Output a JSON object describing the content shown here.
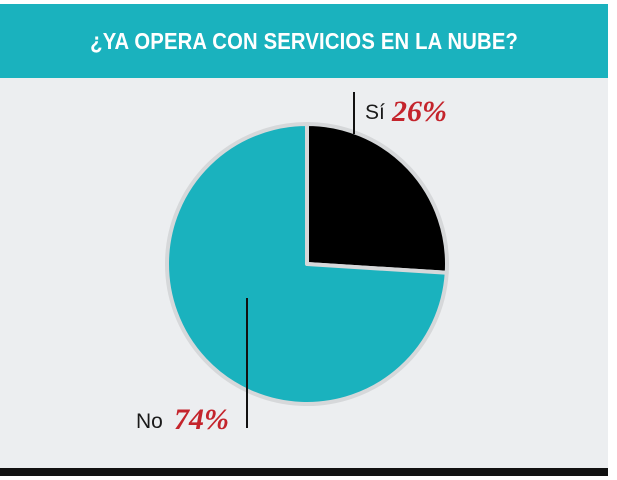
{
  "chart_data": {
    "type": "pie",
    "title": "¿YA OPERA CON SERVICIOS EN LA NUBE?",
    "categories": [
      "Sí",
      "No"
    ],
    "values": [
      26,
      74
    ],
    "value_labels": [
      "26%",
      "74%"
    ],
    "colors": [
      "#000000",
      "#1ab2be"
    ]
  },
  "colors": {
    "header_bg": "#1ab2be",
    "panel_bg": "#eceef0",
    "percent_text": "#c4242c"
  }
}
